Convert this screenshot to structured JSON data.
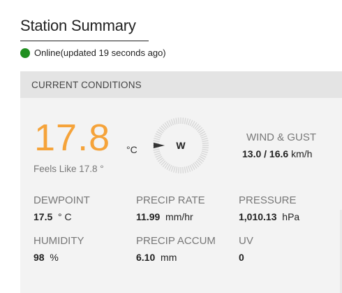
{
  "header": {
    "title": "Station Summary",
    "status_text": "Online(updated 19 seconds ago)",
    "status_color": "#1f8f1f"
  },
  "current_conditions": {
    "section_title": "CURRENT CONDITIONS",
    "temperature": "17.8",
    "temperature_unit": "°C",
    "feels_like": "Feels Like 17.8 °",
    "temperature_color": "#f5a33a",
    "wind": {
      "direction": "W",
      "compass_icon": "compass-dial-icon",
      "label": "WIND & GUST",
      "speed": "13.0",
      "separator": " / ",
      "gust": "16.6",
      "unit": "km/h"
    },
    "stats": {
      "dewpoint": {
        "label": "DEWPOINT",
        "value": "17.5",
        "unit": "° C"
      },
      "precip_rate": {
        "label": "PRECIP RATE",
        "value": "11.99",
        "unit": "mm/hr"
      },
      "pressure": {
        "label": "PRESSURE",
        "value": "1,010.13",
        "unit": "hPa"
      },
      "humidity": {
        "label": "HUMIDITY",
        "value": "98",
        "unit": "%"
      },
      "precip_accum": {
        "label": "PRECIP ACCUM",
        "value": "6.10",
        "unit": "mm"
      },
      "uv": {
        "label": "UV",
        "value": "0",
        "unit": ""
      }
    }
  }
}
